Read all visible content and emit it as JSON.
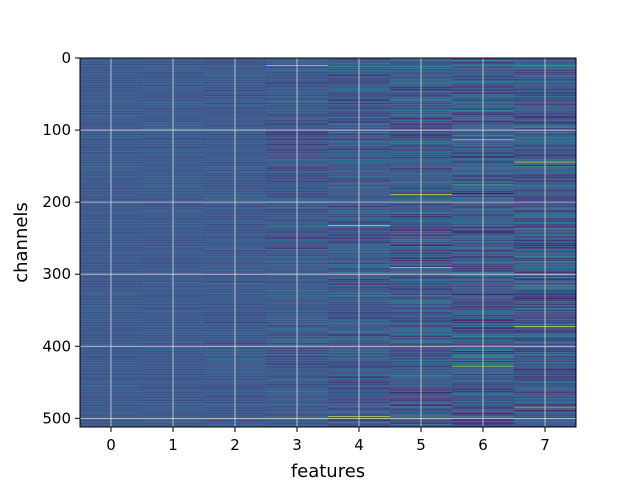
{
  "chart_data": {
    "type": "heatmap",
    "title": "",
    "xlabel": "features",
    "ylabel": "channels",
    "x_ticks": [
      0,
      1,
      2,
      3,
      4,
      5,
      6,
      7
    ],
    "y_ticks": [
      0,
      100,
      200,
      300,
      400,
      500
    ],
    "xlim": [
      -0.5,
      7.5
    ],
    "ylim": [
      512,
      0
    ],
    "rows": 512,
    "columns": 8,
    "grid": true,
    "colormap": "viridis",
    "column_spread": [
      0.04,
      0.05,
      0.07,
      0.1,
      0.13,
      0.16,
      0.17,
      0.19
    ],
    "highlight_rows": [
      {
        "feature": 3,
        "channel": 10
      },
      {
        "feature": 4,
        "channel": 232
      },
      {
        "feature": 4,
        "channel": 497
      },
      {
        "feature": 5,
        "channel": 189
      },
      {
        "feature": 5,
        "channel": 290
      },
      {
        "feature": 6,
        "channel": 113
      },
      {
        "feature": 6,
        "channel": 428
      },
      {
        "feature": 7,
        "channel": 144
      },
      {
        "feature": 7,
        "channel": 372
      },
      {
        "feature": 7,
        "channel": 485
      }
    ],
    "colors": {
      "base": "#3b4f8f",
      "low": "#2f2a6e",
      "high": "#5ec962",
      "grid": "#d9d9d9"
    }
  }
}
